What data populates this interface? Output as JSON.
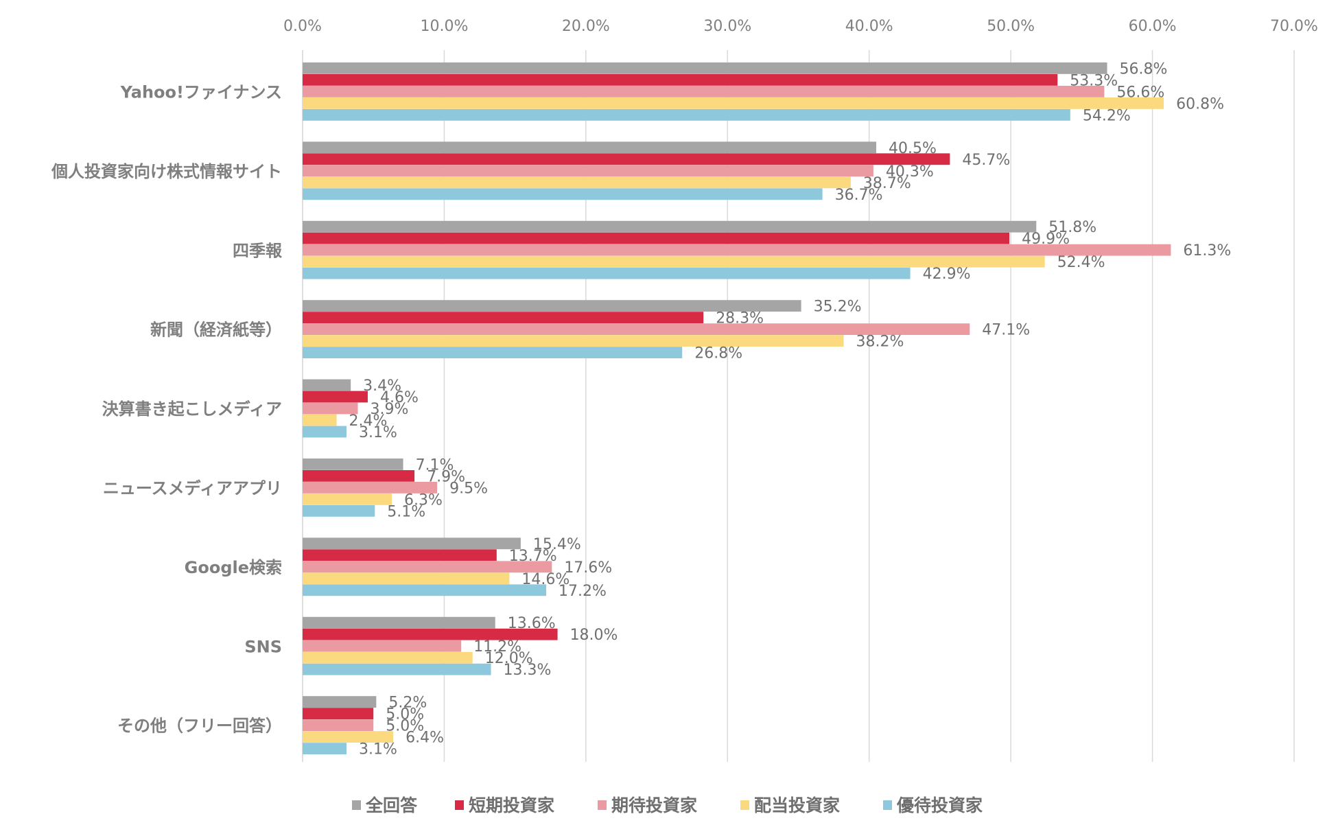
{
  "chart_data": {
    "type": "bar",
    "orientation": "horizontal",
    "title": "",
    "xlabel": "",
    "ylabel": "",
    "xlim": [
      0,
      70
    ],
    "x_ticks": [
      "0.0%",
      "10.0%",
      "20.0%",
      "30.0%",
      "40.0%",
      "50.0%",
      "60.0%",
      "70.0%"
    ],
    "x_tick_values": [
      0,
      10,
      20,
      30,
      40,
      50,
      60,
      70
    ],
    "grid": true,
    "legend_position": "bottom",
    "categories": [
      "Yahoo!ファイナンス",
      "個人投資家向け株式情報サイト",
      "四季報",
      "新聞（経済紙等）",
      "決算書き起こしメディア",
      "ニュースメディアアプリ",
      "Google検索",
      "SNS",
      "その他（フリー回答）"
    ],
    "series": [
      {
        "name": "全回答",
        "color": "#a5a5a5",
        "values": [
          56.8,
          40.5,
          51.8,
          35.2,
          3.4,
          7.1,
          15.4,
          13.6,
          5.2
        ],
        "labels": [
          "56.8%",
          "40.5%",
          "51.8%",
          "35.2%",
          "3.4%",
          "7.1%",
          "15.4%",
          "13.6%",
          "5.2%"
        ]
      },
      {
        "name": "短期投資家",
        "color": "#d62a45",
        "values": [
          53.3,
          45.7,
          49.9,
          28.3,
          4.6,
          7.9,
          13.7,
          18.0,
          5.0
        ],
        "labels": [
          "53.3%",
          "45.7%",
          "49.9%",
          "28.3%",
          "4.6%",
          "7.9%",
          "13.7%",
          "18.0%",
          "5.0%"
        ]
      },
      {
        "name": "期待投資家",
        "color": "#ec9aa2",
        "values": [
          56.6,
          40.3,
          61.3,
          47.1,
          3.9,
          9.5,
          17.6,
          11.2,
          5.0
        ],
        "labels": [
          "56.6%",
          "40.3%",
          "61.3%",
          "47.1%",
          "3.9%",
          "9.5%",
          "17.6%",
          "11.2%",
          "5.0%"
        ]
      },
      {
        "name": "配当投資家",
        "color": "#fad97f",
        "values": [
          60.8,
          38.7,
          52.4,
          38.2,
          2.4,
          6.3,
          14.6,
          12.0,
          6.4
        ],
        "labels": [
          "60.8%",
          "38.7%",
          "52.4%",
          "38.2%",
          "2.4%",
          "6.3%",
          "14.6%",
          "12.0%",
          "6.4%"
        ]
      },
      {
        "name": "優待投資家",
        "color": "#8ec8dc",
        "values": [
          54.2,
          36.7,
          42.9,
          26.8,
          3.1,
          5.1,
          17.2,
          13.3,
          3.1
        ],
        "labels": [
          "54.2%",
          "36.7%",
          "42.9%",
          "26.8%",
          "3.1%",
          "5.1%",
          "17.2%",
          "13.3%",
          "3.1%"
        ]
      }
    ]
  }
}
